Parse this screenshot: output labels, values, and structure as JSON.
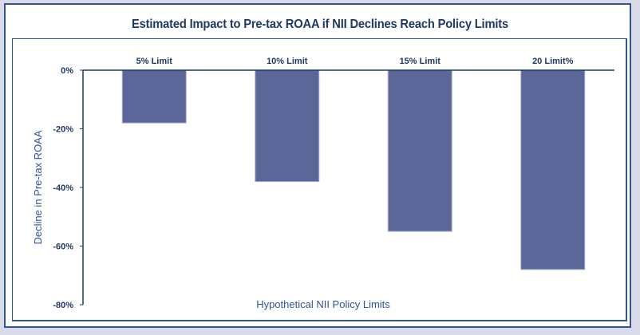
{
  "chart_data": {
    "type": "bar",
    "title": "Estimated Impact to Pre-tax ROAA if NII Declines Reach Policy Limits",
    "xlabel": "Hypothetical NII Policy Limits",
    "ylabel": "Decline in Pre-tax ROAA",
    "categories": [
      "5% Limit",
      "10% Limit",
      "15% Limit",
      "20 Limit%"
    ],
    "values": [
      -18,
      -38,
      -55,
      -68
    ],
    "value_unit": "%",
    "ylim": [
      -80,
      0
    ],
    "yticks": [
      0,
      -20,
      -40,
      -60,
      -80
    ],
    "ytick_labels": [
      "0%",
      "-20%",
      "-40%",
      "-60%",
      "-80%"
    ],
    "category_label_position": "top",
    "grid": false,
    "legend": "none",
    "colors": {
      "bar": "#5a6798",
      "bar_edge": "#a9b0d0",
      "axis": "#1f3864",
      "frame": "#2f5597",
      "background": "#d9dbea"
    }
  }
}
